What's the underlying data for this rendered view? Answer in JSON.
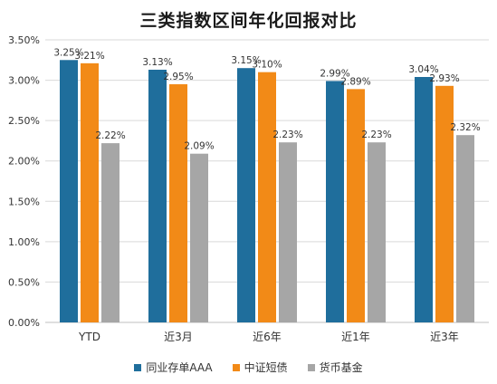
{
  "chart_data": {
    "type": "bar",
    "title": "三类指数区间年化回报对比",
    "categories": [
      "YTD",
      "近3月",
      "近6年",
      "近1年",
      "近3年"
    ],
    "series": [
      {
        "name": "同业存单AAA",
        "color": "#1F6E9C",
        "values": [
          3.25,
          3.13,
          3.15,
          2.99,
          3.04
        ]
      },
      {
        "name": "中证短债",
        "color": "#F28A17",
        "values": [
          3.21,
          2.95,
          3.1,
          2.89,
          2.93
        ]
      },
      {
        "name": "货币基金",
        "color": "#A6A6A6",
        "values": [
          2.22,
          2.09,
          2.23,
          2.23,
          2.32
        ]
      }
    ],
    "value_labels": [
      [
        "3.25%",
        "3.13%",
        "3.15%",
        "2.99%",
        "3.04%"
      ],
      [
        "3.21%",
        "2.95%",
        "3.10%",
        "2.89%",
        "2.93%"
      ],
      [
        "2.22%",
        "2.09%",
        "2.23%",
        "2.23%",
        "2.32%"
      ]
    ],
    "ylim": [
      0,
      3.5
    ],
    "yticks": [
      0,
      0.5,
      1.0,
      1.5,
      2.0,
      2.5,
      3.0,
      3.5
    ],
    "ytick_labels": [
      "0.00%",
      "0.50%",
      "1.00%",
      "1.50%",
      "2.00%",
      "2.50%",
      "3.00%",
      "3.50%"
    ],
    "grid": true,
    "legend_position": "bottom",
    "xlabel": "",
    "ylabel": ""
  }
}
